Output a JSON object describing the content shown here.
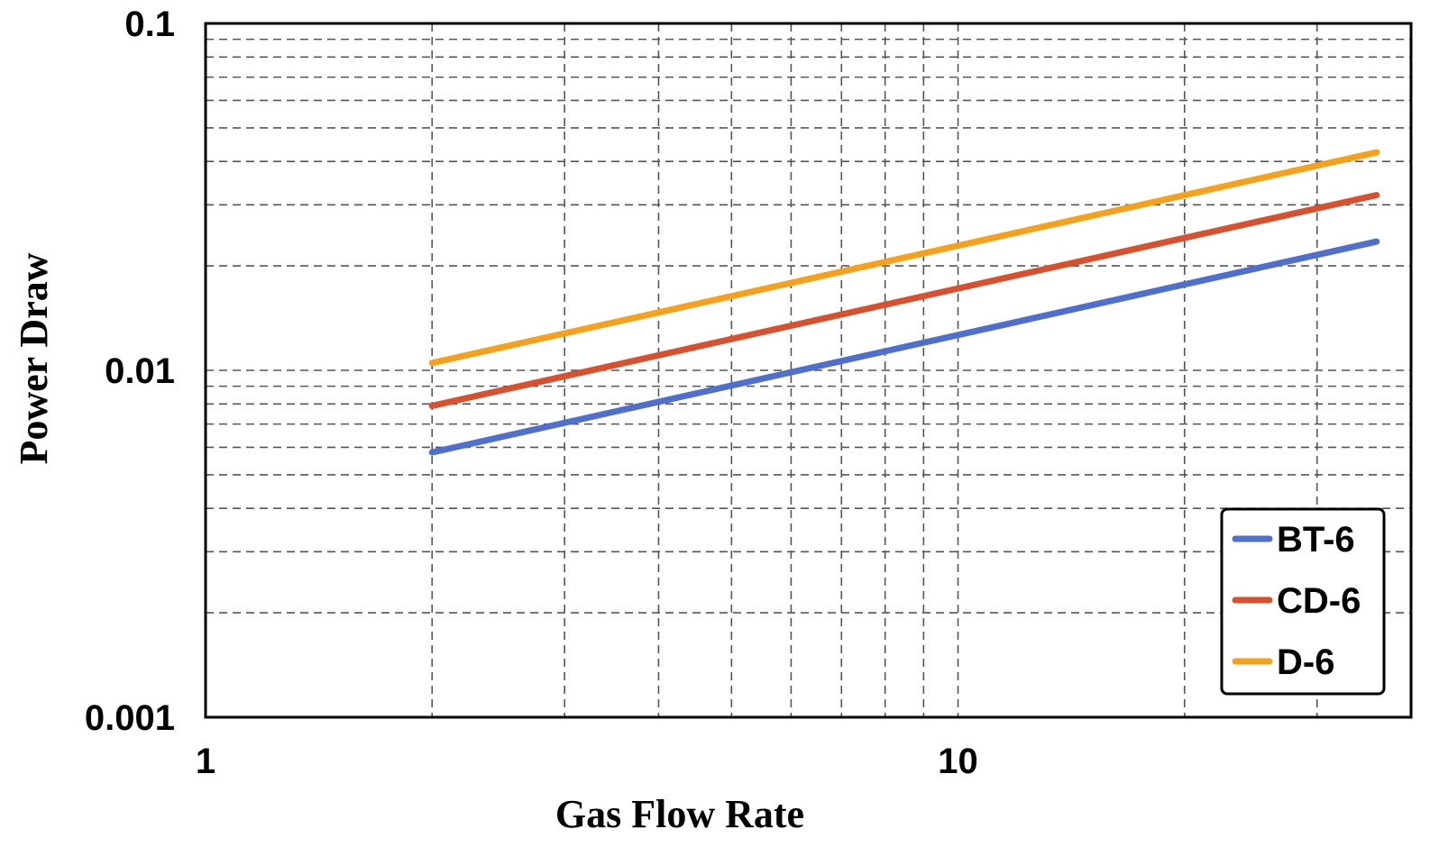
{
  "chart_data": {
    "type": "line",
    "title": "",
    "xlabel": "Gas Flow Rate",
    "ylabel": "Power Draw",
    "xscale": "log",
    "yscale": "log",
    "xlim": [
      1,
      40
    ],
    "ylim": [
      0.001,
      0.1
    ],
    "xticks": [
      {
        "value": 1,
        "label": "1"
      },
      {
        "value": 10,
        "label": "10"
      }
    ],
    "yticks": [
      {
        "value": 0.001,
        "label": "0.001"
      },
      {
        "value": 0.01,
        "label": "0.01"
      },
      {
        "value": 0.1,
        "label": "0.1"
      }
    ],
    "grid": true,
    "grid_style": "dashed",
    "legend_position": "bottom-right",
    "series": [
      {
        "name": "BT-6",
        "color": "#4f6fcf",
        "x": [
          2,
          36
        ],
        "y": [
          0.0058,
          0.0235
        ]
      },
      {
        "name": "CD-6",
        "color": "#d9502e",
        "x": [
          2,
          36
        ],
        "y": [
          0.0079,
          0.032
        ]
      },
      {
        "name": "D-6",
        "color": "#f5a11c",
        "x": [
          2,
          36
        ],
        "y": [
          0.0105,
          0.0425
        ]
      }
    ]
  }
}
